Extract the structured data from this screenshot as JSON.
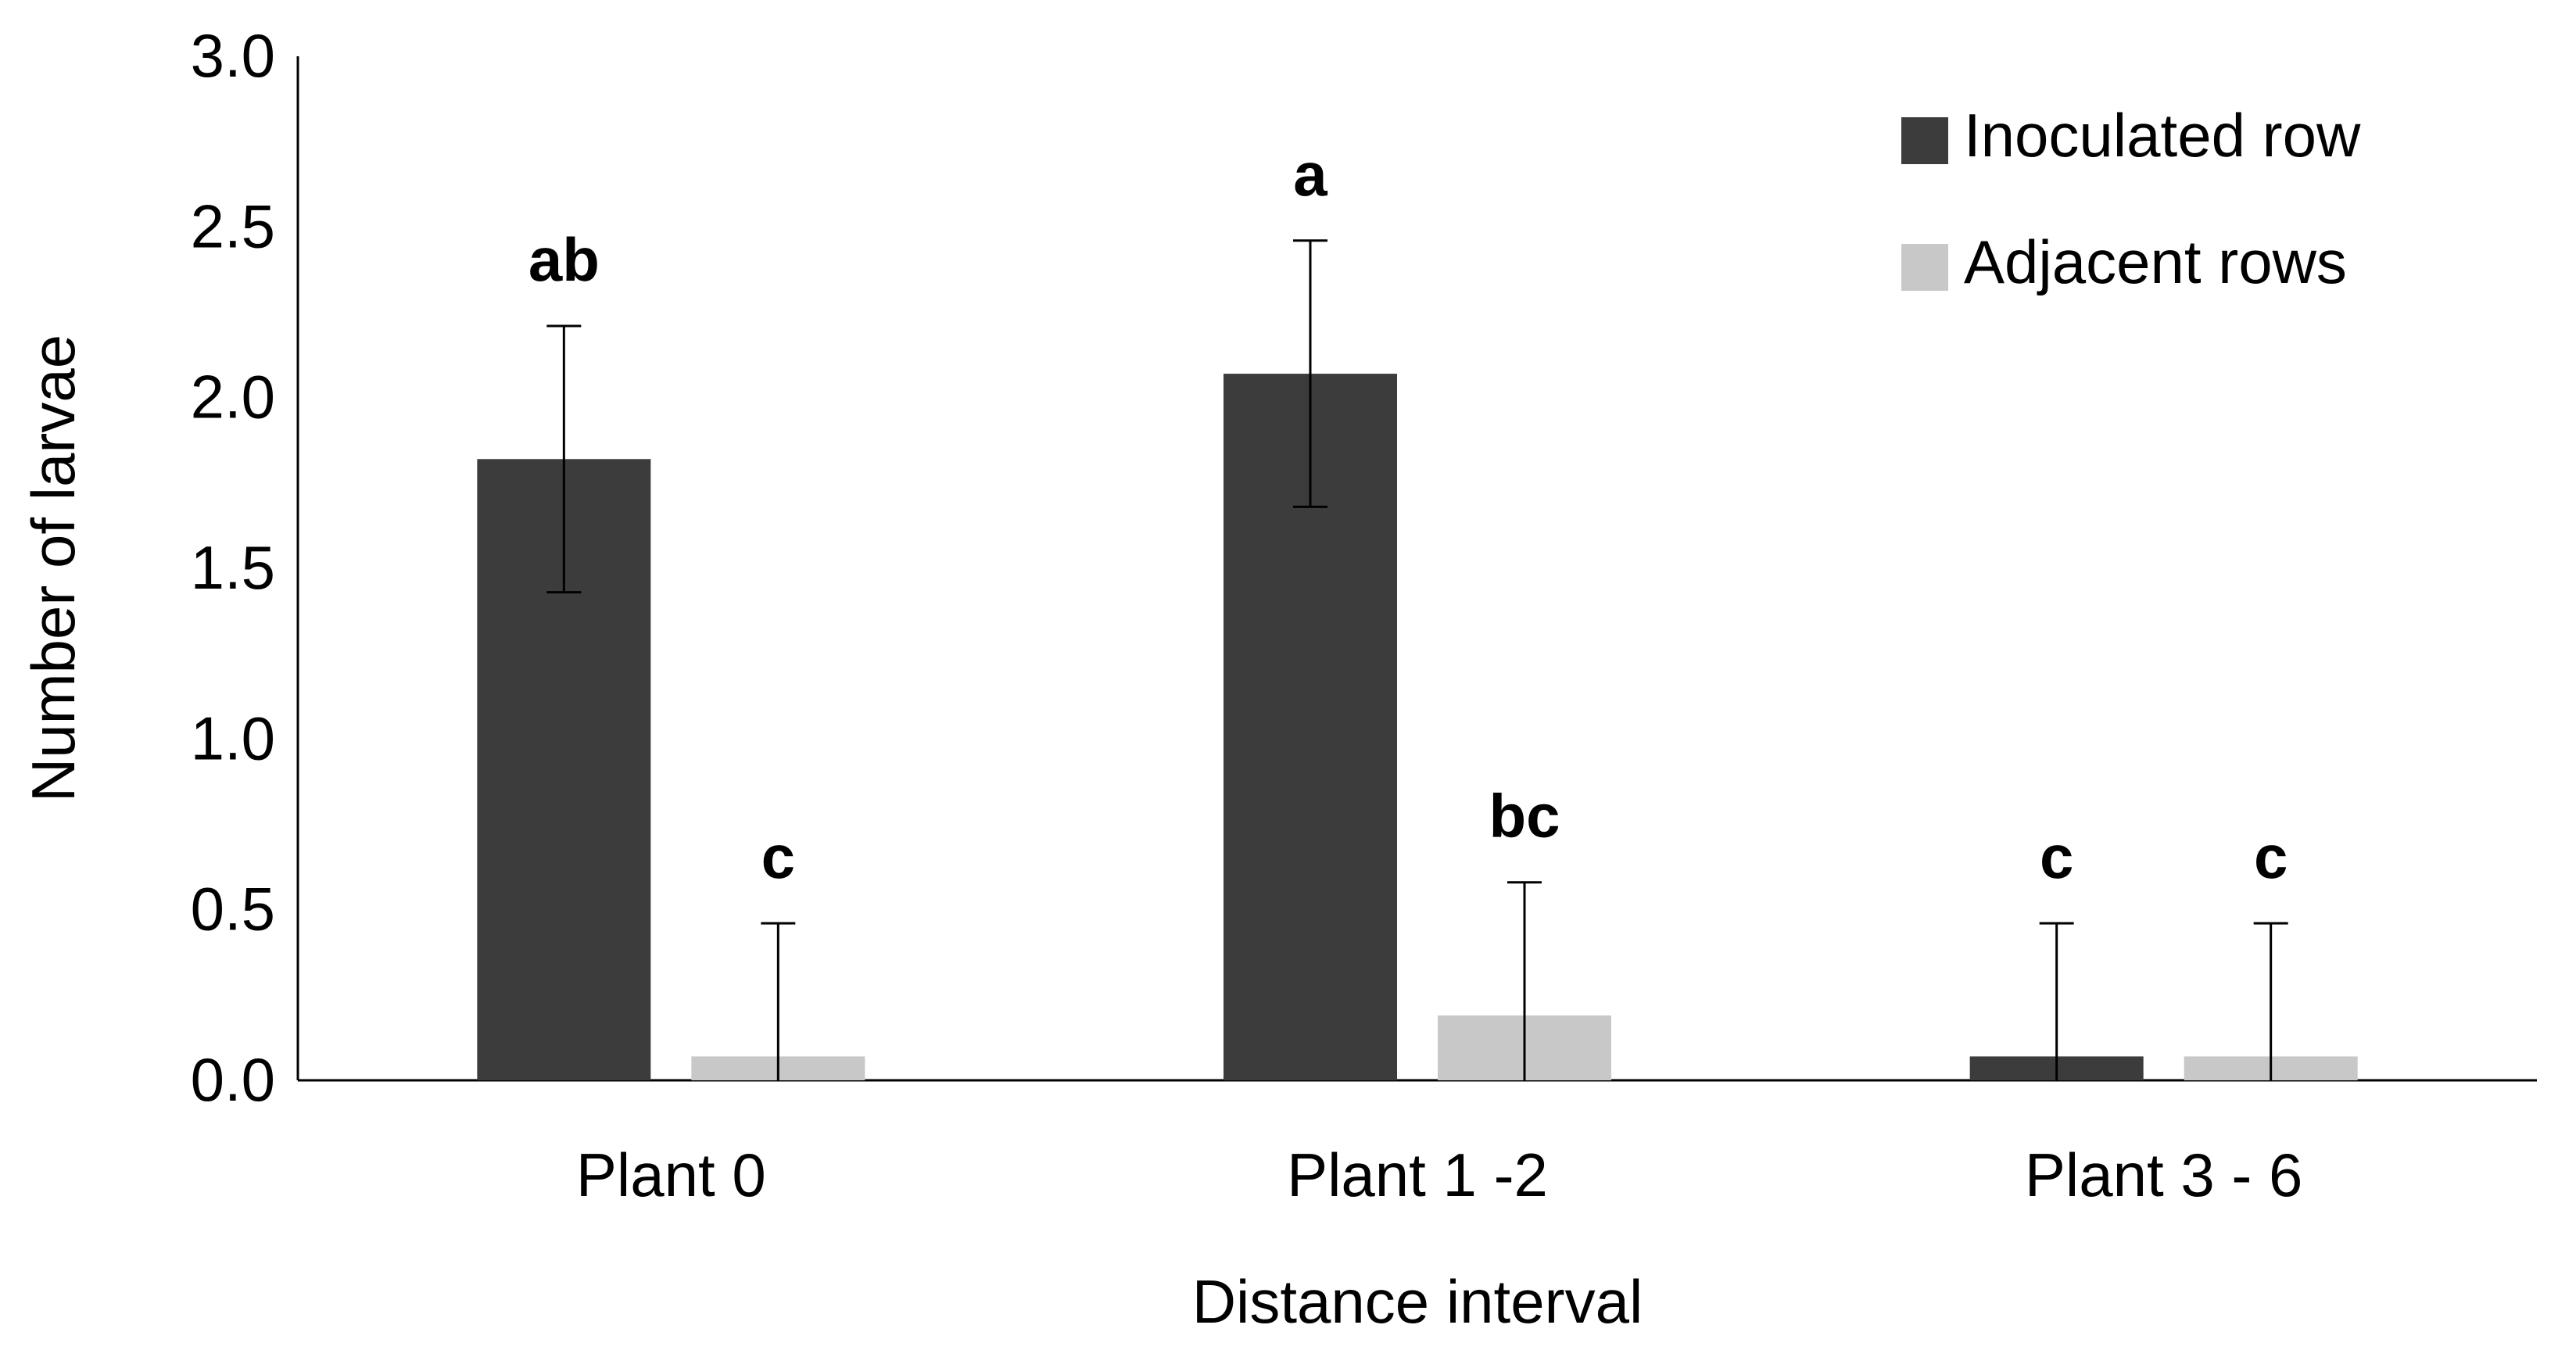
{
  "chart_data": {
    "type": "bar",
    "title": "",
    "xlabel": "Distance interval",
    "ylabel": "Number of larvae",
    "categories": [
      "Plant 0",
      "Plant 1 -2",
      "Plant 3 - 6"
    ],
    "ylim": [
      0,
      3.0
    ],
    "yticks": [
      0.0,
      0.5,
      1.0,
      1.5,
      2.0,
      2.5,
      3.0
    ],
    "ytick_labels": [
      "0.0",
      "0.5",
      "1.0",
      "1.5",
      "2.0",
      "2.5",
      "3.0"
    ],
    "grid": false,
    "legend_position": "top-right",
    "series": [
      {
        "name": "Inoculated row",
        "color": "#3c3c3c",
        "values": [
          1.82,
          2.07,
          0.07
        ],
        "error": [
          0.39,
          0.39,
          0.39
        ],
        "sig_labels": [
          "ab",
          "a",
          "c"
        ]
      },
      {
        "name": "Adjacent rows",
        "color": "#c8c8c8",
        "values": [
          0.07,
          0.19,
          0.07
        ],
        "error": [
          0.39,
          0.39,
          0.39
        ],
        "sig_labels": [
          "c",
          "bc",
          "c"
        ]
      }
    ]
  }
}
